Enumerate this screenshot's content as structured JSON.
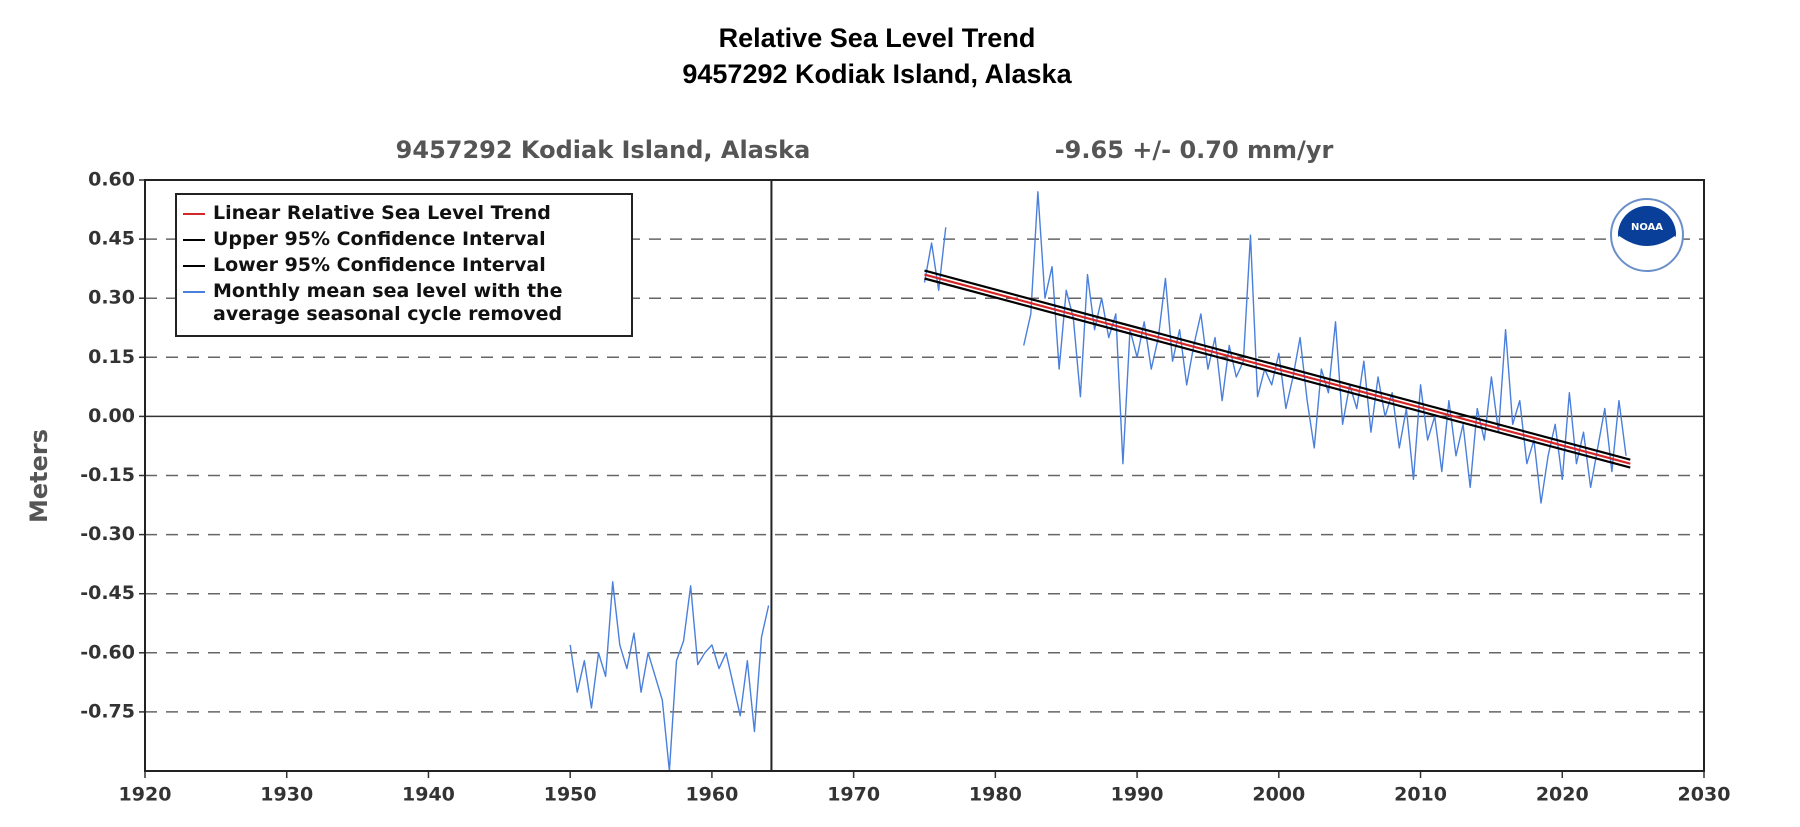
{
  "chart_data": {
    "type": "line",
    "title": [
      "Relative Sea Level Trend",
      "9457292 Kodiak Island, Alaska"
    ],
    "subtitle_left": "9457292 Kodiak Island, Alaska",
    "subtitle_right": "-9.65 +/-  0.70 mm/yr",
    "ylabel": "Meters",
    "logo_text": "NOAA",
    "xlim": [
      1920,
      2030
    ],
    "xticks": [
      1920,
      1930,
      1940,
      1950,
      1960,
      1970,
      1980,
      1990,
      2000,
      2010,
      2020,
      2030
    ],
    "ylim": [
      -0.9,
      0.6
    ],
    "yticks": [
      {
        "value": 0.6,
        "label": "0.60"
      },
      {
        "value": 0.45,
        "label": "0.45"
      },
      {
        "value": 0.3,
        "label": "0.30"
      },
      {
        "value": 0.15,
        "label": "0.15"
      },
      {
        "value": 0,
        "label": "0.00"
      },
      {
        "value": -0.15,
        "label": "-0.15"
      },
      {
        "value": -0.3,
        "label": "-0.30"
      },
      {
        "value": -0.45,
        "label": "-0.45"
      },
      {
        "value": -0.6,
        "label": "-0.60"
      },
      {
        "value": -0.75,
        "label": "-0.75"
      }
    ],
    "grid": true,
    "zero_line": 0,
    "vlines": [
      1964.2
    ],
    "legend": "upper left",
    "series": [
      {
        "name": "Linear Relative Sea Level Trend",
        "color": "#d62728",
        "x": [
          1975.0,
          2024.8
        ],
        "values": [
          0.36,
          -0.12
        ]
      },
      {
        "name": "Upper 95% Confidence Interval",
        "color": "#000000",
        "x": [
          1975.0,
          2024.8
        ],
        "values": [
          0.37,
          -0.11
        ]
      },
      {
        "name": "Lower 95% Confidence Interval",
        "color": "#000000",
        "x": [
          1975.0,
          2024.8
        ],
        "values": [
          0.35,
          -0.13
        ]
      },
      {
        "name": "Monthly mean sea level with the average seasonal cycle removed",
        "color": "#4a7fdb",
        "x": [
          1950.0,
          1950.5,
          1951.0,
          1951.5,
          1952.0,
          1952.5,
          1953.0,
          1953.5,
          1954.0,
          1954.5,
          1955.0,
          1955.5,
          1956.0,
          1956.5,
          1957.0,
          1957.5,
          1958.0,
          1958.5,
          1959.0,
          1959.5,
          1960.0,
          1960.5,
          1961.0,
          1961.5,
          1962.0,
          1962.5,
          1963.0,
          1963.5,
          1964.0,
          1970.0,
          1975.0,
          1975.5,
          1976.0,
          1976.5,
          1979.0,
          1982.0,
          1982.5,
          1983.0,
          1983.5,
          1984.0,
          1984.5,
          1985.0,
          1985.5,
          1986.0,
          1986.5,
          1987.0,
          1987.5,
          1988.0,
          1988.5,
          1989.0,
          1989.5,
          1990.0,
          1990.5,
          1991.0,
          1991.5,
          1992.0,
          1992.5,
          1993.0,
          1993.5,
          1994.0,
          1994.5,
          1995.0,
          1995.5,
          1996.0,
          1996.5,
          1997.0,
          1997.5,
          1998.0,
          1998.5,
          1999.0,
          1999.5,
          2000.0,
          2000.5,
          2001.0,
          2001.5,
          2002.0,
          2002.5,
          2003.0,
          2003.5,
          2004.0,
          2004.5,
          2005.0,
          2005.5,
          2006.0,
          2006.5,
          2007.0,
          2007.5,
          2008.0,
          2008.5,
          2009.0,
          2009.5,
          2010.0,
          2010.5,
          2011.0,
          2011.5,
          2012.0,
          2012.5,
          2013.0,
          2013.5,
          2014.0,
          2014.5,
          2015.0,
          2015.5,
          2016.0,
          2016.5,
          2017.0,
          2017.5,
          2018.0,
          2018.5,
          2019.0,
          2019.5,
          2020.0,
          2020.5,
          2021.0,
          2021.5,
          2022.0,
          2022.5,
          2023.0,
          2023.5,
          2024.0,
          2024.5
        ],
        "values": [
          -0.58,
          -0.7,
          -0.62,
          -0.74,
          -0.6,
          -0.66,
          -0.42,
          -0.58,
          -0.64,
          -0.55,
          -0.7,
          -0.6,
          -0.66,
          -0.72,
          -0.9,
          -0.62,
          -0.57,
          -0.43,
          -0.63,
          -0.6,
          -0.58,
          -0.64,
          -0.6,
          -0.68,
          -0.76,
          -0.62,
          -0.8,
          -0.56,
          -0.48,
          null,
          0.34,
          0.44,
          0.32,
          0.48,
          null,
          0.18,
          0.26,
          0.57,
          0.3,
          0.38,
          0.12,
          0.32,
          0.25,
          0.05,
          0.36,
          0.22,
          0.3,
          0.2,
          0.26,
          -0.12,
          0.22,
          0.15,
          0.24,
          0.12,
          0.2,
          0.35,
          0.14,
          0.22,
          0.08,
          0.18,
          0.26,
          0.12,
          0.2,
          0.04,
          0.18,
          0.1,
          0.14,
          0.46,
          0.05,
          0.12,
          0.08,
          0.16,
          0.02,
          0.1,
          0.2,
          0.04,
          -0.08,
          0.12,
          0.06,
          0.24,
          -0.02,
          0.08,
          0.02,
          0.14,
          -0.04,
          0.1,
          0.0,
          0.06,
          -0.08,
          0.02,
          -0.16,
          0.08,
          -0.06,
          0.0,
          -0.14,
          0.04,
          -0.1,
          -0.02,
          -0.18,
          0.02,
          -0.06,
          0.1,
          -0.04,
          0.22,
          -0.02,
          0.04,
          -0.12,
          -0.06,
          -0.22,
          -0.1,
          -0.02,
          -0.16,
          0.06,
          -0.12,
          -0.04,
          -0.18,
          -0.08,
          0.02,
          -0.14,
          0.04,
          -0.1
        ]
      }
    ]
  }
}
